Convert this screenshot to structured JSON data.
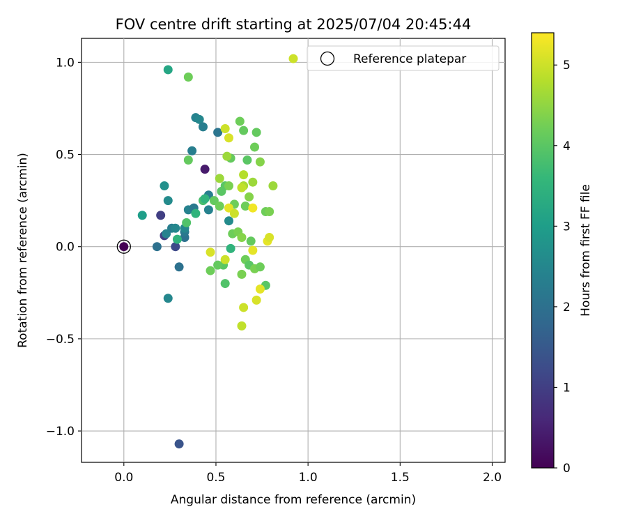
{
  "chart_data": {
    "type": "scatter",
    "title": "FOV centre drift starting at 2025/07/04 20:45:44",
    "xlabel": "Angular distance from reference (arcmin)",
    "ylabel": "Rotation from reference (arcmin)",
    "xlim": [
      -0.23,
      2.07
    ],
    "ylim": [
      -1.17,
      1.13
    ],
    "xticks": [
      0.0,
      0.5,
      1.0,
      1.5,
      2.0
    ],
    "xtick_labels": [
      "0.0",
      "0.5",
      "1.0",
      "1.5",
      "2.0"
    ],
    "yticks": [
      -1.0,
      -0.5,
      0.0,
      0.5,
      1.0
    ],
    "ytick_labels": [
      "−1.0",
      "−0.5",
      "0.0",
      "0.5",
      "1.0"
    ],
    "grid": true,
    "legend": {
      "position": "top-right",
      "entries": [
        "Reference platepar"
      ]
    },
    "colorbar": {
      "label": "Hours from first FF file",
      "colormap": "viridis",
      "range": [
        0,
        5.4
      ],
      "ticks": [
        0,
        1,
        2,
        3,
        4,
        5
      ],
      "tick_labels": [
        "0",
        "1",
        "2",
        "3",
        "4",
        "5"
      ]
    },
    "reference_point": {
      "x": 0.0,
      "y": 0.0,
      "c": 0.0
    },
    "series": [
      {
        "points": [
          {
            "x": 0.0,
            "y": 0.0,
            "c": 0.0
          },
          {
            "x": 0.44,
            "y": 0.42,
            "c": 0.4
          },
          {
            "x": 0.2,
            "y": 0.17,
            "c": 1.0
          },
          {
            "x": 0.22,
            "y": 0.06,
            "c": 1.0
          },
          {
            "x": 0.28,
            "y": 0.0,
            "c": 1.2
          },
          {
            "x": 0.3,
            "y": -1.07,
            "c": 1.4
          },
          {
            "x": 0.3,
            "y": -0.11,
            "c": 2.0
          },
          {
            "x": 0.18,
            "y": 0.0,
            "c": 2.0
          },
          {
            "x": 0.24,
            "y": -0.28,
            "c": 2.5
          },
          {
            "x": 0.33,
            "y": 0.05,
            "c": 2.0
          },
          {
            "x": 0.33,
            "y": 0.08,
            "c": 2.2
          },
          {
            "x": 0.23,
            "y": 0.07,
            "c": 2.4
          },
          {
            "x": 0.26,
            "y": 0.1,
            "c": 2.3
          },
          {
            "x": 0.28,
            "y": 0.1,
            "c": 2.5
          },
          {
            "x": 0.22,
            "y": 0.33,
            "c": 2.7
          },
          {
            "x": 0.24,
            "y": 0.25,
            "c": 2.6
          },
          {
            "x": 0.1,
            "y": 0.17,
            "c": 3.0
          },
          {
            "x": 0.35,
            "y": 0.2,
            "c": 2.4
          },
          {
            "x": 0.38,
            "y": 0.21,
            "c": 2.2
          },
          {
            "x": 0.37,
            "y": 0.52,
            "c": 2.3
          },
          {
            "x": 0.33,
            "y": 0.1,
            "c": 2.5
          },
          {
            "x": 0.39,
            "y": 0.7,
            "c": 2.4
          },
          {
            "x": 0.41,
            "y": 0.69,
            "c": 2.5
          },
          {
            "x": 0.43,
            "y": 0.65,
            "c": 2.3
          },
          {
            "x": 0.51,
            "y": 0.62,
            "c": 2.1
          },
          {
            "x": 0.46,
            "y": 0.28,
            "c": 2.3
          },
          {
            "x": 0.46,
            "y": 0.2,
            "c": 2.4
          },
          {
            "x": 0.57,
            "y": 0.14,
            "c": 2.6
          },
          {
            "x": 0.24,
            "y": 0.96,
            "c": 3.2
          },
          {
            "x": 0.29,
            "y": 0.04,
            "c": 3.5
          },
          {
            "x": 0.39,
            "y": 0.18,
            "c": 3.5
          },
          {
            "x": 0.34,
            "y": 0.13,
            "c": 3.9
          },
          {
            "x": 0.43,
            "y": 0.25,
            "c": 3.8
          },
          {
            "x": 0.44,
            "y": 0.26,
            "c": 3.5
          },
          {
            "x": 0.58,
            "y": -0.01,
            "c": 3.5
          },
          {
            "x": 0.35,
            "y": 0.92,
            "c": 4.2
          },
          {
            "x": 0.35,
            "y": 0.47,
            "c": 4.1
          },
          {
            "x": 0.49,
            "y": 0.25,
            "c": 4.1
          },
          {
            "x": 0.52,
            "y": 0.22,
            "c": 4.2
          },
          {
            "x": 0.53,
            "y": 0.3,
            "c": 4.0
          },
          {
            "x": 0.55,
            "y": 0.33,
            "c": 4.0
          },
          {
            "x": 0.55,
            "y": -0.2,
            "c": 3.9
          },
          {
            "x": 0.54,
            "y": -0.1,
            "c": 4.0
          },
          {
            "x": 0.51,
            "y": -0.1,
            "c": 4.1
          },
          {
            "x": 0.47,
            "y": -0.13,
            "c": 4.2
          },
          {
            "x": 0.58,
            "y": 0.48,
            "c": 4.1
          },
          {
            "x": 0.6,
            "y": 0.23,
            "c": 4.2
          },
          {
            "x": 0.57,
            "y": 0.33,
            "c": 4.3
          },
          {
            "x": 0.59,
            "y": 0.07,
            "c": 4.2
          },
          {
            "x": 0.62,
            "y": 0.08,
            "c": 4.3
          },
          {
            "x": 0.64,
            "y": 0.05,
            "c": 4.4
          },
          {
            "x": 0.63,
            "y": 0.68,
            "c": 4.2
          },
          {
            "x": 0.65,
            "y": 0.63,
            "c": 4.1
          },
          {
            "x": 0.67,
            "y": 0.47,
            "c": 4.0
          },
          {
            "x": 0.66,
            "y": -0.07,
            "c": 4.2
          },
          {
            "x": 0.68,
            "y": -0.1,
            "c": 4.0
          },
          {
            "x": 0.64,
            "y": -0.15,
            "c": 4.3
          },
          {
            "x": 0.66,
            "y": 0.22,
            "c": 4.2
          },
          {
            "x": 0.68,
            "y": 0.27,
            "c": 4.4
          },
          {
            "x": 0.69,
            "y": 0.03,
            "c": 4.1
          },
          {
            "x": 0.71,
            "y": -0.12,
            "c": 4.3
          },
          {
            "x": 0.71,
            "y": 0.54,
            "c": 4.2
          },
          {
            "x": 0.72,
            "y": 0.62,
            "c": 4.1
          },
          {
            "x": 0.74,
            "y": 0.46,
            "c": 4.4
          },
          {
            "x": 0.74,
            "y": -0.11,
            "c": 4.2
          },
          {
            "x": 0.77,
            "y": -0.21,
            "c": 4.0
          },
          {
            "x": 0.77,
            "y": 0.19,
            "c": 4.2
          },
          {
            "x": 0.79,
            "y": 0.19,
            "c": 4.3
          },
          {
            "x": 0.52,
            "y": 0.37,
            "c": 4.6
          },
          {
            "x": 0.56,
            "y": 0.49,
            "c": 4.6
          },
          {
            "x": 0.7,
            "y": 0.35,
            "c": 4.6
          },
          {
            "x": 0.65,
            "y": 0.33,
            "c": 4.7
          },
          {
            "x": 0.65,
            "y": 0.39,
            "c": 4.8
          },
          {
            "x": 0.64,
            "y": 0.32,
            "c": 4.9
          },
          {
            "x": 0.81,
            "y": 0.33,
            "c": 4.6
          },
          {
            "x": 0.64,
            "y": -0.43,
            "c": 4.9
          },
          {
            "x": 0.65,
            "y": -0.33,
            "c": 5.0
          },
          {
            "x": 0.72,
            "y": -0.29,
            "c": 5.1
          },
          {
            "x": 0.55,
            "y": 0.64,
            "c": 5.0
          },
          {
            "x": 0.57,
            "y": 0.59,
            "c": 5.1
          },
          {
            "x": 0.57,
            "y": 0.21,
            "c": 5.2
          },
          {
            "x": 0.6,
            "y": 0.18,
            "c": 5.0
          },
          {
            "x": 0.47,
            "y": -0.03,
            "c": 5.1
          },
          {
            "x": 0.55,
            "y": -0.07,
            "c": 5.0
          },
          {
            "x": 0.7,
            "y": 0.21,
            "c": 5.3
          },
          {
            "x": 0.7,
            "y": -0.02,
            "c": 5.2
          },
          {
            "x": 0.78,
            "y": 0.03,
            "c": 5.2
          },
          {
            "x": 0.79,
            "y": 0.05,
            "c": 5.1
          },
          {
            "x": 0.74,
            "y": -0.23,
            "c": 5.2
          },
          {
            "x": 0.92,
            "y": 1.02,
            "c": 5.0
          }
        ]
      }
    ]
  }
}
